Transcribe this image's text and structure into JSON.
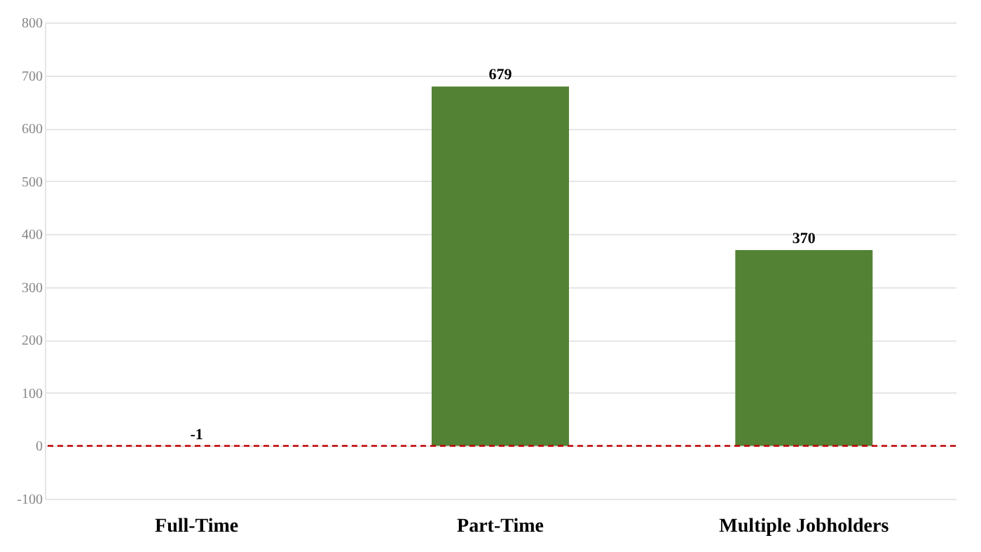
{
  "chart_data": {
    "type": "bar",
    "categories": [
      "Full-Time",
      "Part-Time",
      "Multiple Jobholders"
    ],
    "values": [
      -1,
      679,
      370
    ],
    "colors": [
      "#f4b6b6",
      "#548235",
      "#548235"
    ],
    "ylim": [
      -100,
      800
    ],
    "yticks": [
      -100,
      0,
      100,
      200,
      300,
      400,
      500,
      600,
      700,
      800
    ],
    "grid": "y",
    "data_labels": true,
    "ref_lines": [
      {
        "axis": "y",
        "value": 0,
        "color": "#c00000",
        "line_style": "dashed"
      }
    ]
  }
}
